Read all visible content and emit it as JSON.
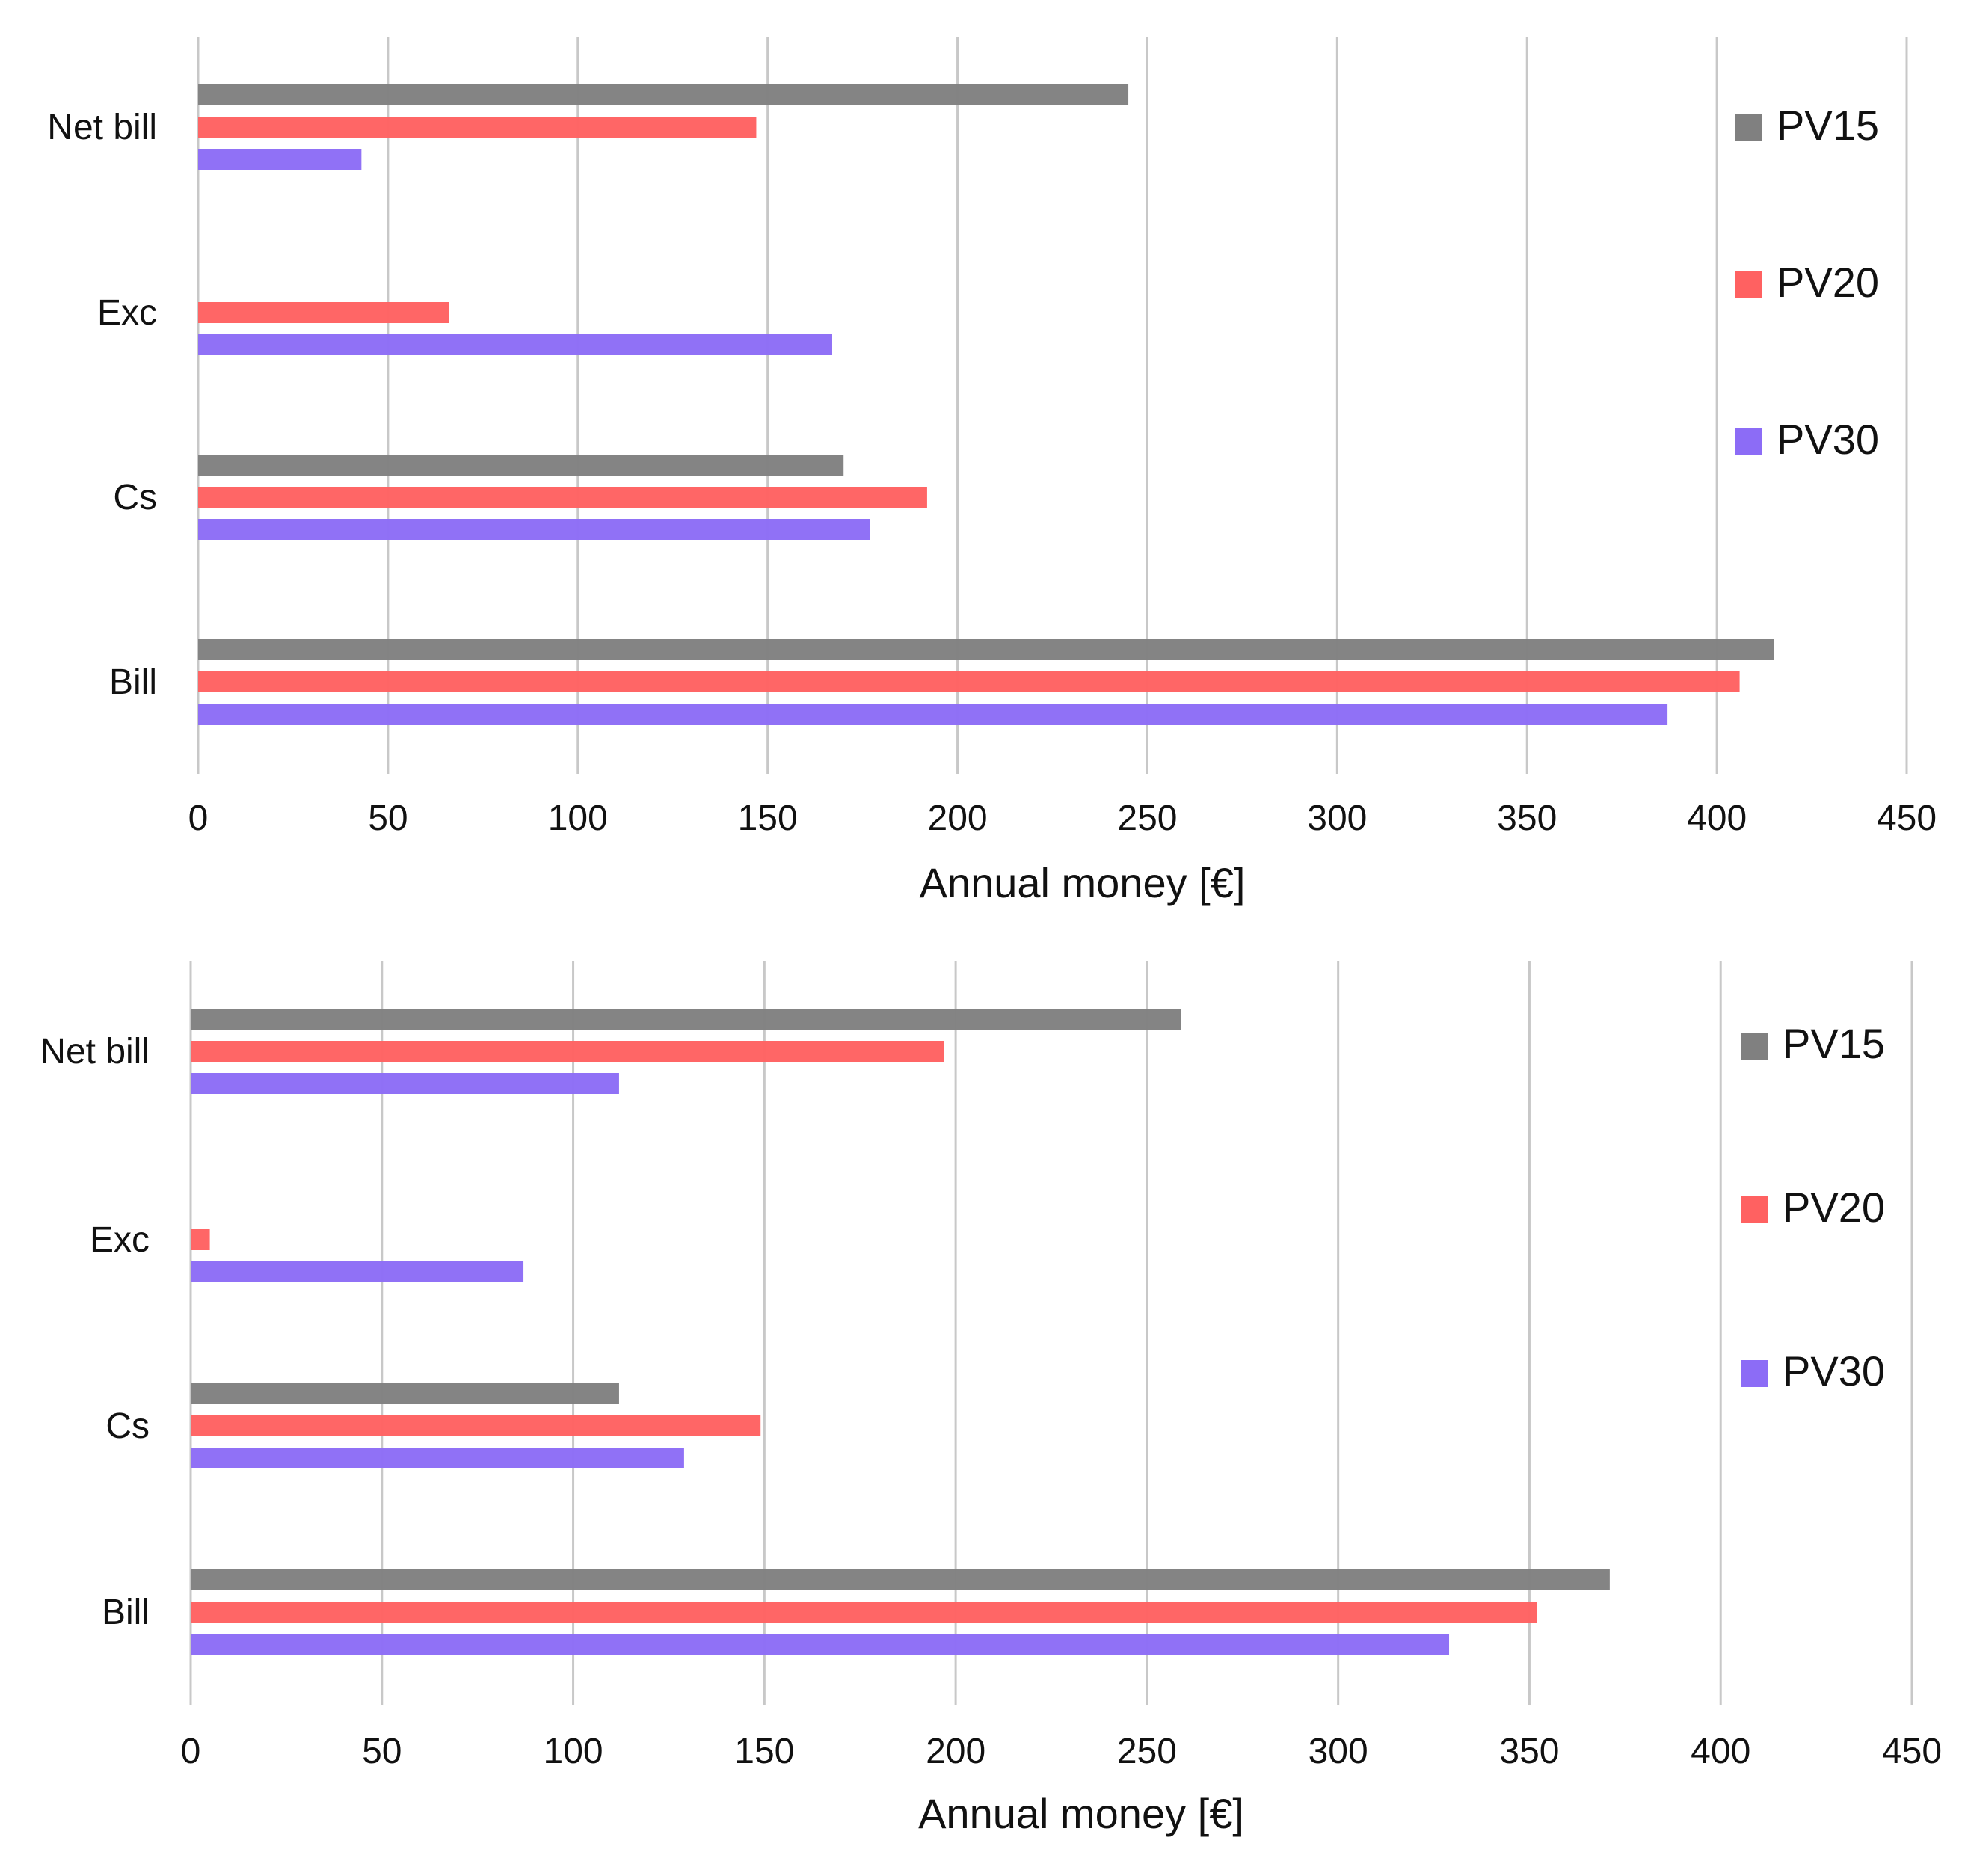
{
  "colors": {
    "PV15": "#808080",
    "PV20": "#ff6161",
    "PV30": "#8c6cf6"
  },
  "chart_data": [
    {
      "type": "bar",
      "orientation": "horizontal",
      "title": "",
      "xlabel": "Annual money [€]",
      "ylabel": "",
      "xlim": [
        0,
        450
      ],
      "xticks": [
        "0",
        "50",
        "100",
        "150",
        "200",
        "250",
        "300",
        "350",
        "400",
        "450"
      ],
      "categories": [
        "Net bill",
        "Exc",
        "Cs",
        "Bill"
      ],
      "legend": {
        "position": "right",
        "entries": [
          "PV15",
          "PV20",
          "PV30"
        ]
      },
      "grid": "vertical",
      "series": [
        {
          "name": "PV15",
          "values": [
            245,
            0,
            170,
            415
          ]
        },
        {
          "name": "PV20",
          "values": [
            147,
            66,
            192,
            406
          ]
        },
        {
          "name": "PV30",
          "values": [
            43,
            167,
            177,
            387
          ]
        }
      ]
    },
    {
      "type": "bar",
      "orientation": "horizontal",
      "title": "",
      "xlabel": "Annual money [€]",
      "ylabel": "",
      "xlim": [
        0,
        450
      ],
      "xticks": [
        "0",
        "50",
        "100",
        "150",
        "200",
        "250",
        "300",
        "350",
        "400",
        "450"
      ],
      "categories": [
        "Net bill",
        "Exc",
        "Cs",
        "Bill"
      ],
      "legend": {
        "position": "right",
        "entries": [
          "PV15",
          "PV20",
          "PV30"
        ]
      },
      "grid": "vertical",
      "series": [
        {
          "name": "PV15",
          "values": [
            259,
            0,
            112,
            371
          ]
        },
        {
          "name": "PV20",
          "values": [
            197,
            5,
            149,
            352
          ]
        },
        {
          "name": "PV30",
          "values": [
            112,
            87,
            129,
            329
          ]
        }
      ]
    }
  ]
}
